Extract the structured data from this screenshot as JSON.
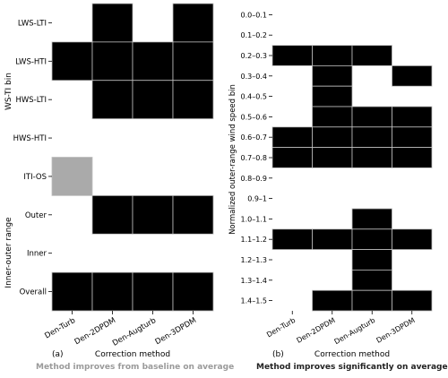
{
  "chart_data": [
    {
      "type": "heatmap",
      "panel_label": "(a)",
      "title": "Method improves from baseline on average",
      "title_color": "#9a9a9a",
      "ylabel_top": "WS-TI bin",
      "ylabel_bottom": "Inner-outer range",
      "xlabel": "Correction method",
      "columns": [
        "Den-Turb",
        "Den-2DPDM",
        "Den-Augturb",
        "Den-3DPDM"
      ],
      "rows": [
        "LWS-LTI",
        "LWS-HTI",
        "HWS-LTI",
        "HWS-HTI",
        "ITI-OS",
        "Outer",
        "Inner",
        "Overall"
      ],
      "values": [
        [
          0,
          1,
          0,
          1
        ],
        [
          1,
          1,
          1,
          1
        ],
        [
          0,
          1,
          1,
          1
        ],
        [
          0,
          0,
          0,
          0
        ],
        [
          2,
          0,
          0,
          0
        ],
        [
          0,
          1,
          1,
          1
        ],
        [
          0,
          0,
          0,
          0
        ],
        [
          1,
          1,
          1,
          1
        ]
      ],
      "legend": {
        "0": "white",
        "1": "black",
        "2": "gray"
      }
    },
    {
      "type": "heatmap",
      "panel_label": "(b)",
      "title": "Method improves significantly on average",
      "title_color": "#222222",
      "ylabel": "Normalized outer-range wind speed bin",
      "xlabel": "Correction method",
      "columns": [
        "Den-Turb",
        "Den-2DPDM",
        "Den-Augturb",
        "Den-3DPDM"
      ],
      "rows": [
        "0.0–0.1",
        "0.1–0.2",
        "0.2–0.3",
        "0.3–0.4",
        "0.4–0.5",
        "0.5–0.6",
        "0.6–0.7",
        "0.7–0.8",
        "0.8–0.9",
        "0.9–1",
        "1.0–1.1",
        "1.1–1.2",
        "1.2–1.3",
        "1.3–1.4",
        "1.4–1.5"
      ],
      "values": [
        [
          0,
          0,
          0,
          0
        ],
        [
          0,
          0,
          0,
          0
        ],
        [
          1,
          1,
          1,
          0
        ],
        [
          0,
          1,
          0,
          1
        ],
        [
          0,
          1,
          0,
          0
        ],
        [
          0,
          1,
          1,
          1
        ],
        [
          1,
          1,
          1,
          1
        ],
        [
          1,
          1,
          1,
          1
        ],
        [
          0,
          0,
          0,
          0
        ],
        [
          0,
          0,
          0,
          0
        ],
        [
          0,
          0,
          1,
          0
        ],
        [
          1,
          1,
          1,
          1
        ],
        [
          0,
          0,
          1,
          0
        ],
        [
          0,
          0,
          1,
          0
        ],
        [
          0,
          1,
          1,
          1
        ]
      ],
      "legend": {
        "0": "white",
        "1": "black"
      }
    }
  ],
  "colors": {
    "filled": "#000000",
    "gray": "#aaaaaa",
    "empty": "#ffffff",
    "grid": "#bfbfbf"
  }
}
